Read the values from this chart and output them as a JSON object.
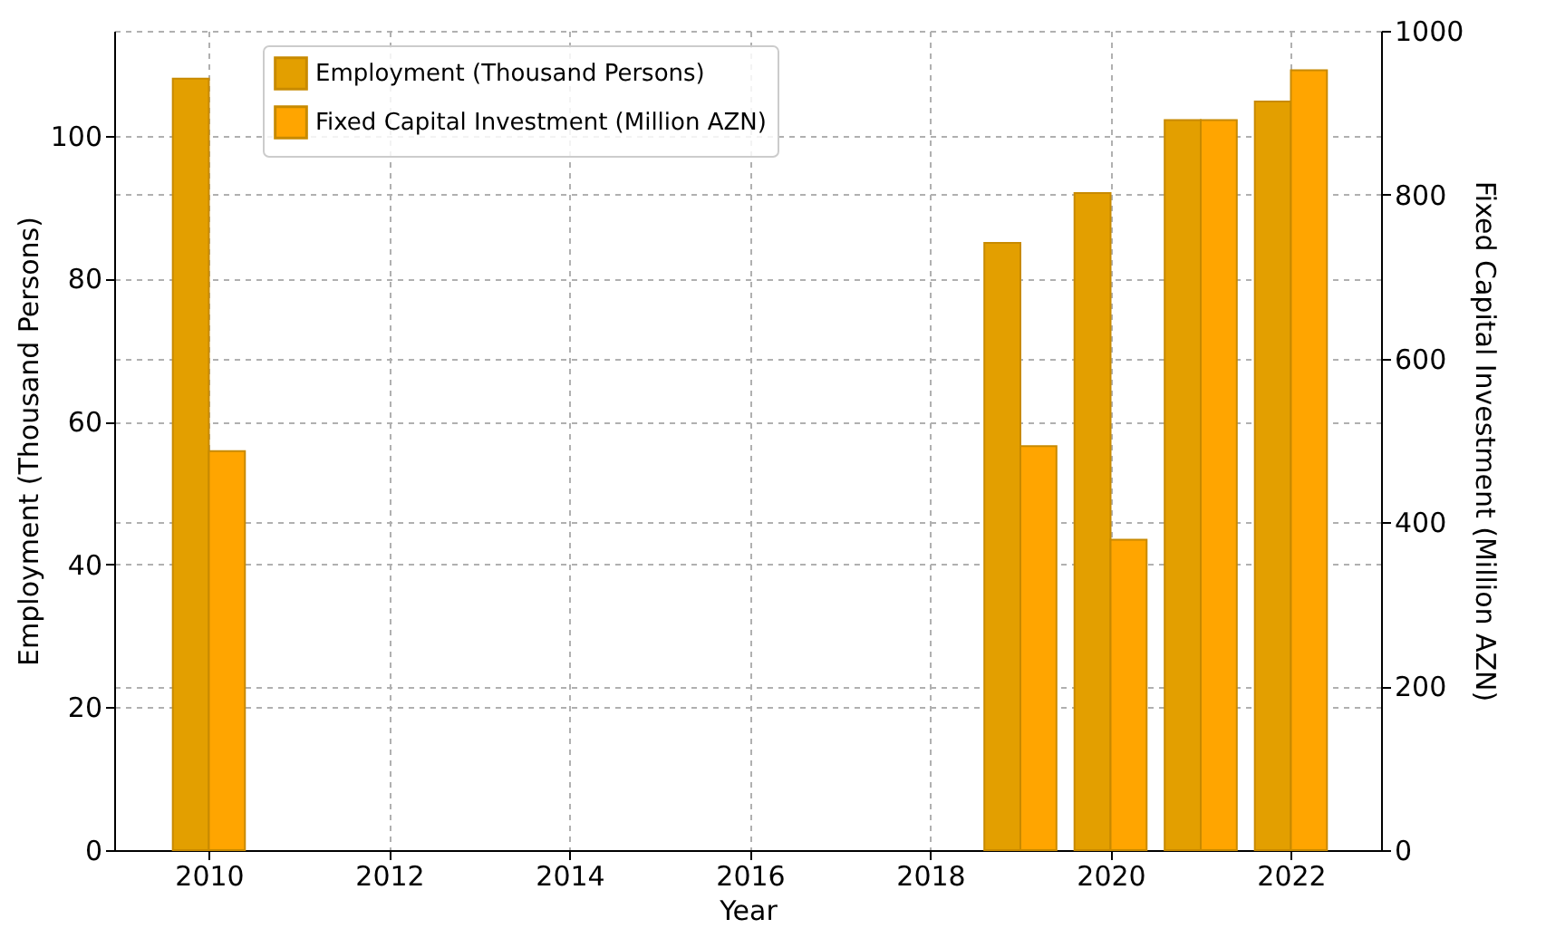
{
  "chart_data": {
    "type": "bar",
    "xlabel": "Year",
    "ylabel": "Employment (Thousand Persons)",
    "y2label": "Fixed Capital Investment (Million AZN)",
    "x": [
      2010,
      2019,
      2020,
      2021,
      2022
    ],
    "series": [
      {
        "name": "Employment (Thousand Persons)",
        "color": "#e39f00",
        "values": [
          108,
          85,
          92,
          102.2,
          104.8
        ]
      },
      {
        "name": "Fixed Capital Investment (Million AZN)",
        "color": "#ffa500",
        "axis": "y2",
        "values": [
          487,
          493,
          379,
          891,
          952
        ]
      }
    ],
    "xlim": [
      2008.95,
      2023.0
    ],
    "xticks": [
      2010,
      2012,
      2014,
      2016,
      2018,
      2020,
      2022
    ],
    "ylim": [
      0,
      114.7
    ],
    "yticks": [
      0,
      20,
      40,
      60,
      80,
      100
    ],
    "y2lim": [
      0,
      1000
    ],
    "y2ticks": [
      0,
      200,
      400,
      600,
      800,
      1000
    ],
    "grid": true,
    "legend": "top left"
  }
}
